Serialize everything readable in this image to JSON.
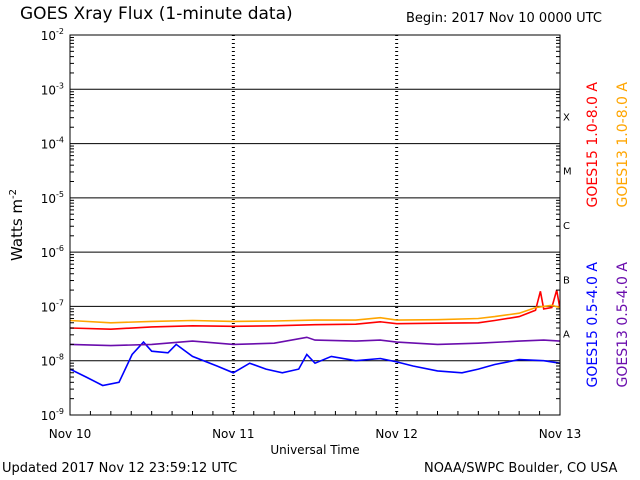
{
  "header": {
    "title": "GOES Xray Flux (1-minute data)",
    "begin_label": "Begin:  2017 Nov 10 0000 UTC"
  },
  "footer": {
    "updated": "Updated 2017 Nov 12 23:59:12 UTC",
    "credit": "NOAA/SWPC Boulder, CO USA"
  },
  "chart_data": {
    "type": "line",
    "title": "GOES Xray Flux (1-minute data)",
    "xlabel": "Universal Time",
    "ylabel": "Watts m",
    "ylabel_superscript": "-2",
    "yscale": "log",
    "ylim": [
      1e-09,
      0.01
    ],
    "y_ticks": [
      {
        "base": "10",
        "exp": "-2",
        "value": 0.01
      },
      {
        "base": "10",
        "exp": "-3",
        "value": 0.001
      },
      {
        "base": "10",
        "exp": "-4",
        "value": 0.0001
      },
      {
        "base": "10",
        "exp": "-5",
        "value": 1e-05
      },
      {
        "base": "10",
        "exp": "-6",
        "value": 1e-06
      },
      {
        "base": "10",
        "exp": "-7",
        "value": 1e-07
      },
      {
        "base": "10",
        "exp": "-8",
        "value": 1e-08
      },
      {
        "base": "10",
        "exp": "-9",
        "value": 1e-09
      }
    ],
    "x_ticks": [
      {
        "label": "Nov 10",
        "day": 0
      },
      {
        "label": "Nov 11",
        "day": 1
      },
      {
        "label": "Nov 12",
        "day": 2
      },
      {
        "label": "Nov 13",
        "day": 3
      }
    ],
    "xlim_days": [
      0,
      3
    ],
    "flare_classes": [
      {
        "label": "X",
        "lower": 0.0001
      },
      {
        "label": "M",
        "lower": 1e-05
      },
      {
        "label": "C",
        "lower": 1e-06
      },
      {
        "label": "B",
        "lower": 1e-07
      },
      {
        "label": "A",
        "lower": 1e-08
      }
    ],
    "grid": true,
    "series": [
      {
        "name": "GOES15 1.0-8.0 A",
        "color": "#ff0000",
        "points": [
          [
            0,
            4e-08
          ],
          [
            0.25,
            3.8e-08
          ],
          [
            0.5,
            4.2e-08
          ],
          [
            0.75,
            4.4e-08
          ],
          [
            1.0,
            4.3e-08
          ],
          [
            1.25,
            4.4e-08
          ],
          [
            1.5,
            4.6e-08
          ],
          [
            1.75,
            4.7e-08
          ],
          [
            1.9,
            5.2e-08
          ],
          [
            2.0,
            4.8e-08
          ],
          [
            2.25,
            4.9e-08
          ],
          [
            2.5,
            5e-08
          ],
          [
            2.6,
            5.5e-08
          ],
          [
            2.75,
            6.5e-08
          ],
          [
            2.85,
            8.5e-08
          ],
          [
            2.88,
            1.9e-07
          ],
          [
            2.9,
            9e-08
          ],
          [
            2.95,
            9.5e-08
          ],
          [
            2.98,
            2e-07
          ],
          [
            3.0,
            9e-08
          ]
        ]
      },
      {
        "name": "GOES13 1.0-8.0 A",
        "color": "#ffa500",
        "points": [
          [
            0,
            5.5e-08
          ],
          [
            0.25,
            5e-08
          ],
          [
            0.5,
            5.3e-08
          ],
          [
            0.75,
            5.5e-08
          ],
          [
            1.0,
            5.3e-08
          ],
          [
            1.25,
            5.4e-08
          ],
          [
            1.5,
            5.6e-08
          ],
          [
            1.75,
            5.6e-08
          ],
          [
            1.9,
            6.2e-08
          ],
          [
            2.0,
            5.6e-08
          ],
          [
            2.25,
            5.7e-08
          ],
          [
            2.5,
            6e-08
          ],
          [
            2.6,
            6.5e-08
          ],
          [
            2.75,
            7.5e-08
          ],
          [
            2.85,
            9.5e-08
          ],
          [
            2.9,
            1e-07
          ],
          [
            2.95,
            1.05e-07
          ],
          [
            3.0,
            9.5e-08
          ]
        ]
      },
      {
        "name": "GOES15 0.5-4.0 A",
        "color": "#0000ff",
        "points": [
          [
            0,
            7e-09
          ],
          [
            0.1,
            5e-09
          ],
          [
            0.2,
            3.5e-09
          ],
          [
            0.3,
            4e-09
          ],
          [
            0.38,
            1.3e-08
          ],
          [
            0.45,
            2.2e-08
          ],
          [
            0.5,
            1.5e-08
          ],
          [
            0.6,
            1.4e-08
          ],
          [
            0.65,
            2e-08
          ],
          [
            0.75,
            1.2e-08
          ],
          [
            0.9,
            8e-09
          ],
          [
            1.0,
            6e-09
          ],
          [
            1.1,
            9e-09
          ],
          [
            1.2,
            7e-09
          ],
          [
            1.3,
            6e-09
          ],
          [
            1.4,
            7e-09
          ],
          [
            1.45,
            1.3e-08
          ],
          [
            1.5,
            9e-09
          ],
          [
            1.6,
            1.2e-08
          ],
          [
            1.75,
            1e-08
          ],
          [
            1.9,
            1.1e-08
          ],
          [
            2.0,
            9.5e-09
          ],
          [
            2.1,
            8e-09
          ],
          [
            2.25,
            6.5e-09
          ],
          [
            2.4,
            6e-09
          ],
          [
            2.5,
            7e-09
          ],
          [
            2.6,
            8.5e-09
          ],
          [
            2.75,
            1.05e-08
          ],
          [
            2.9,
            1e-08
          ],
          [
            3.0,
            9e-09
          ]
        ]
      },
      {
        "name": "GOES13 0.5-4.0 A",
        "color": "#6a0dad",
        "points": [
          [
            0,
            2e-08
          ],
          [
            0.25,
            1.9e-08
          ],
          [
            0.5,
            2e-08
          ],
          [
            0.75,
            2.3e-08
          ],
          [
            1.0,
            2e-08
          ],
          [
            1.25,
            2.1e-08
          ],
          [
            1.45,
            2.7e-08
          ],
          [
            1.5,
            2.4e-08
          ],
          [
            1.75,
            2.3e-08
          ],
          [
            1.9,
            2.4e-08
          ],
          [
            2.0,
            2.2e-08
          ],
          [
            2.25,
            2e-08
          ],
          [
            2.5,
            2.1e-08
          ],
          [
            2.75,
            2.3e-08
          ],
          [
            2.9,
            2.4e-08
          ],
          [
            3.0,
            2.3e-08
          ]
        ]
      }
    ]
  }
}
